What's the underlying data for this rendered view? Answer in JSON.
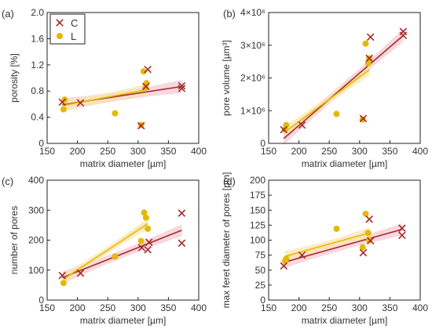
{
  "colors": {
    "C": "#a52a2a",
    "L": "#e6b800",
    "band_C": "#f6c9d3",
    "band_L": "#fbe5b0"
  },
  "legend": {
    "entries": [
      {
        "key": "C",
        "label": "C",
        "marker": "x"
      },
      {
        "key": "L",
        "label": "L",
        "marker": "circle"
      }
    ]
  },
  "chart_data": [
    {
      "panel_label": "(a)",
      "type": "scatter",
      "xlabel": "matrix diameter [µm]",
      "ylabel": "porosity [%]",
      "xlim": [
        150,
        400
      ],
      "ylim": [
        0,
        2.0
      ],
      "x_ticks": [
        "150",
        "200",
        "250",
        "300",
        "350",
        "400"
      ],
      "y_ticks": [
        "0",
        "0.4",
        "0.8",
        "1.2",
        "1.6",
        "2.0"
      ],
      "series": [
        {
          "name": "C",
          "marker": "x",
          "points": [
            [
              175,
              0.63
            ],
            [
              205,
              0.62
            ],
            [
              305,
              0.27
            ],
            [
              313,
              0.87
            ],
            [
              316,
              1.13
            ],
            [
              372,
              0.88
            ],
            [
              372,
              0.84
            ]
          ],
          "fit": [
            [
              175,
              0.59
            ],
            [
              372,
              0.87
            ]
          ]
        },
        {
          "name": "L",
          "marker": "circle",
          "points": [
            [
              177,
              0.52
            ],
            [
              179,
              0.67
            ],
            [
              262,
              0.46
            ],
            [
              305,
              0.28
            ],
            [
              309,
              1.1
            ],
            [
              312,
              0.85
            ],
            [
              314,
              0.92
            ]
          ],
          "fit": [
            [
              177,
              0.58
            ],
            [
              314,
              0.82
            ]
          ]
        }
      ]
    },
    {
      "panel_label": "(b)",
      "type": "scatter",
      "xlabel": "matrix diameter [µm]",
      "ylabel": "pore volume [µm³]",
      "xlim": [
        150,
        400
      ],
      "ylim": [
        0,
        4000000
      ],
      "x_ticks": [
        "150",
        "200",
        "250",
        "300",
        "350",
        "400"
      ],
      "y_ticks": [
        "0",
        "1×10⁶",
        "2×10⁶",
        "3×10⁶",
        "4×10⁶"
      ],
      "series": [
        {
          "name": "C",
          "marker": "x",
          "points": [
            [
              175,
              420000
            ],
            [
              205,
              560000
            ],
            [
              306,
              760000
            ],
            [
              316,
              2600000
            ],
            [
              318,
              3250000
            ],
            [
              372,
              3300000
            ],
            [
              372,
              3420000
            ]
          ],
          "fit": [
            [
              175,
              150000
            ],
            [
              372,
              3300000
            ]
          ]
        },
        {
          "name": "L",
          "marker": "circle",
          "points": [
            [
              177,
              420000
            ],
            [
              179,
              560000
            ],
            [
              262,
              900000
            ],
            [
              305,
              730000
            ],
            [
              310,
              3050000
            ],
            [
              314,
              2450000
            ],
            [
              316,
              2600000
            ]
          ],
          "fit": [
            [
              177,
              350000
            ],
            [
              316,
              2250000
            ]
          ]
        }
      ]
    },
    {
      "panel_label": "(c)",
      "type": "scatter",
      "xlabel": "matrix diameter [µm]",
      "ylabel": "number of pores",
      "xlim": [
        150,
        400
      ],
      "ylim": [
        0,
        400
      ],
      "x_ticks": [
        "150",
        "200",
        "250",
        "300",
        "350",
        "400"
      ],
      "y_ticks": [
        "0",
        "100",
        "200",
        "300",
        "400"
      ],
      "series": [
        {
          "name": "C",
          "marker": "x",
          "points": [
            [
              175,
              82
            ],
            [
              205,
              90
            ],
            [
              306,
              175
            ],
            [
              316,
              168
            ],
            [
              318,
              193
            ],
            [
              372,
              290
            ],
            [
              372,
              190
            ]
          ],
          "fit": [
            [
              175,
              75
            ],
            [
              372,
              233
            ]
          ]
        },
        {
          "name": "L",
          "marker": "circle",
          "points": [
            [
              177,
              57
            ],
            [
              262,
              145
            ],
            [
              305,
              197
            ],
            [
              310,
              292
            ],
            [
              313,
              275
            ],
            [
              316,
              238
            ]
          ],
          "fit": [
            [
              177,
              70
            ],
            [
              316,
              255
            ]
          ]
        }
      ]
    },
    {
      "panel_label": "(d)",
      "type": "scatter",
      "xlabel": "matrix diameter [µm]",
      "ylabel": "max feret diameter of pores [µm]",
      "xlim": [
        150,
        400
      ],
      "ylim": [
        0,
        200
      ],
      "x_ticks": [
        "150",
        "200",
        "250",
        "300",
        "350",
        "400"
      ],
      "y_ticks": [
        "0",
        "25",
        "50",
        "75",
        "100",
        "125",
        "150",
        "175",
        "200"
      ],
      "series": [
        {
          "name": "C",
          "marker": "x",
          "points": [
            [
              175,
              57
            ],
            [
              205,
              75
            ],
            [
              306,
              79
            ],
            [
              316,
              135
            ],
            [
              318,
              99
            ],
            [
              370,
              120
            ],
            [
              370,
              108
            ]
          ],
          "fit": [
            [
              175,
              63
            ],
            [
              370,
              118
            ]
          ]
        },
        {
          "name": "L",
          "marker": "circle",
          "points": [
            [
              177,
              65
            ],
            [
              179,
              69
            ],
            [
              262,
              119
            ],
            [
              305,
              88
            ],
            [
              310,
              144
            ],
            [
              314,
              112
            ],
            [
              316,
              100
            ]
          ],
          "fit": [
            [
              177,
              73
            ],
            [
              316,
              112
            ]
          ]
        }
      ]
    }
  ]
}
